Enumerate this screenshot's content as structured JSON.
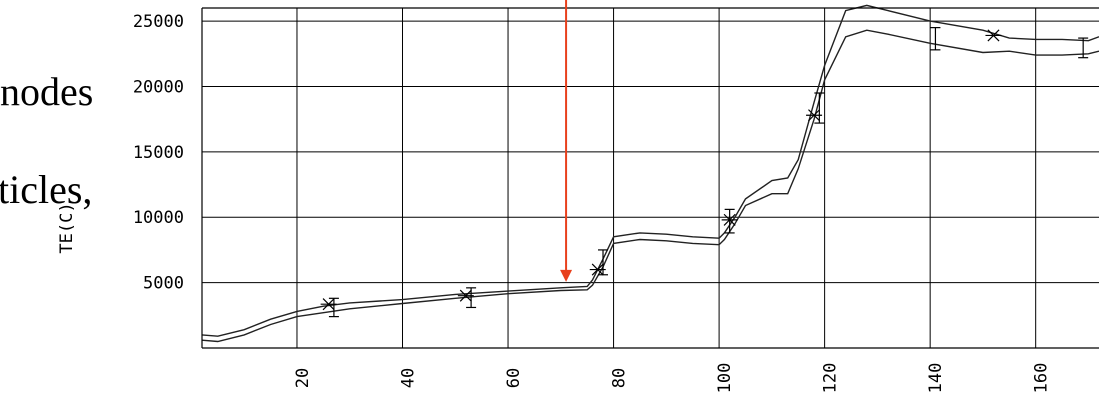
{
  "background_text": {
    "line1": "nodes",
    "line2": "ticles,"
  },
  "chart_data": {
    "type": "line",
    "title": "",
    "xlabel": "",
    "ylabel": "TE(C)",
    "xlim": [
      2,
      172
    ],
    "ylim": [
      0,
      26000
    ],
    "grid": true,
    "x_ticks": [
      {
        "value": 20,
        "label": "20"
      },
      {
        "value": 40,
        "label": "40"
      },
      {
        "value": 60,
        "label": "60"
      },
      {
        "value": 80,
        "label": "80"
      },
      {
        "value": 100,
        "label": "100"
      },
      {
        "value": 120,
        "label": "120"
      },
      {
        "value": 140,
        "label": "140"
      },
      {
        "value": 160,
        "label": "160"
      }
    ],
    "y_ticks": [
      {
        "value": 5000,
        "label": "5000"
      },
      {
        "value": 10000,
        "label": "10000"
      },
      {
        "value": 15000,
        "label": "15000"
      },
      {
        "value": 20000,
        "label": "20000"
      },
      {
        "value": 25000,
        "label": "25000"
      }
    ],
    "series": [
      {
        "x": [
          2,
          5,
          10,
          15,
          20,
          25,
          30,
          40,
          50,
          60,
          70,
          75,
          76,
          78,
          80,
          85,
          90,
          95,
          100,
          101,
          103,
          105,
          110,
          113,
          115,
          118,
          120,
          124,
          128,
          132,
          140,
          150,
          155,
          160,
          165,
          170,
          172
        ],
        "y": [
          1000,
          900,
          1400,
          2200,
          2800,
          3200,
          3450,
          3700,
          4100,
          4350,
          4600,
          4700,
          5200,
          6800,
          8500,
          8800,
          8700,
          8500,
          8400,
          8800,
          10000,
          11400,
          12800,
          13000,
          14400,
          18800,
          21600,
          25800,
          26200,
          25800,
          25000,
          24300,
          23700,
          23600,
          23600,
          23500,
          23800
        ]
      },
      {
        "x": [
          2,
          5,
          10,
          15,
          20,
          25,
          30,
          40,
          50,
          60,
          70,
          75,
          76,
          78,
          80,
          85,
          90,
          95,
          100,
          101,
          103,
          105,
          110,
          113,
          115,
          118,
          120,
          124,
          128,
          132,
          140,
          150,
          155,
          160,
          165,
          170,
          172
        ],
        "y": [
          600,
          500,
          1000,
          1800,
          2400,
          2700,
          3000,
          3400,
          3800,
          4150,
          4400,
          4450,
          4800,
          6200,
          8000,
          8300,
          8200,
          8000,
          7900,
          8300,
          9500,
          10900,
          11800,
          11800,
          13700,
          17500,
          20500,
          23800,
          24300,
          24000,
          23300,
          22600,
          22700,
          22400,
          22400,
          22500,
          22700
        ]
      }
    ],
    "star_markers": [
      {
        "x": 26,
        "y": 3350
      },
      {
        "x": 52,
        "y": 4000
      },
      {
        "x": 77,
        "y": 6000
      },
      {
        "x": 102,
        "y": 9800
      },
      {
        "x": 118,
        "y": 17800
      },
      {
        "x": 152,
        "y": 23900
      }
    ],
    "error_bars": [
      {
        "x": 27,
        "low": 2400,
        "high": 3800
      },
      {
        "x": 53,
        "low": 3100,
        "high": 4600
      },
      {
        "x": 78,
        "low": 5600,
        "high": 7500
      },
      {
        "x": 102,
        "low": 8800,
        "high": 10600
      },
      {
        "x": 119,
        "low": 17200,
        "high": 19500
      },
      {
        "x": 141,
        "low": 22800,
        "high": 24500
      },
      {
        "x": 169,
        "low": 22200,
        "high": 23700
      }
    ],
    "annotation_arrow": {
      "x": 71,
      "y_from": 26000,
      "y_to": 4600,
      "color": "#e8401c"
    }
  }
}
